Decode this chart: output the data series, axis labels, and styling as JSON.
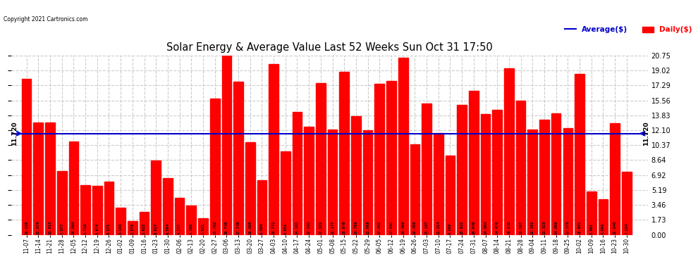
{
  "title": "Solar Energy & Average Value Last 52 Weeks Sun Oct 31 17:50",
  "copyright": "Copyright 2021 Cartronics.com",
  "average_label": "Average($)",
  "daily_label": "Daily($)",
  "average_value": 11.72,
  "categories": [
    "11-07",
    "11-14",
    "11-21",
    "11-28",
    "12-05",
    "12-12",
    "12-19",
    "12-26",
    "01-02",
    "01-09",
    "01-16",
    "01-23",
    "01-30",
    "02-06",
    "02-13",
    "02-20",
    "02-27",
    "03-06",
    "03-13",
    "03-20",
    "03-27",
    "04-03",
    "04-10",
    "04-17",
    "04-24",
    "05-01",
    "05-08",
    "05-15",
    "05-22",
    "05-29",
    "06-05",
    "06-12",
    "06-19",
    "06-26",
    "07-03",
    "07-10",
    "07-17",
    "07-24",
    "07-31",
    "08-07",
    "08-14",
    "08-21",
    "08-28",
    "09-04",
    "09-11",
    "09-18",
    "09-25",
    "10-02",
    "10-09",
    "10-16",
    "10-23",
    "10-30"
  ],
  "values": [
    18.039,
    12.978,
    13.013,
    7.377,
    10.804,
    5.716,
    5.674,
    6.171,
    3.143,
    1.579,
    2.622,
    8.617,
    6.594,
    4.277,
    3.38,
    1.921,
    15.792,
    20.745,
    17.74,
    10.695,
    6.304,
    19.772,
    9.651,
    14.181,
    12.543,
    17.521,
    12.177,
    18.846,
    13.766,
    12.088,
    17.452,
    17.841,
    20.468,
    10.459,
    15.187,
    11.814,
    9.169,
    15.022,
    16.646,
    14.004,
    14.47,
    19.235,
    15.507,
    12.191,
    13.323,
    14.069,
    12.376,
    18.601,
    5.001,
    4.096,
    12.94,
    7.334
  ],
  "bar_labels": [
    "18.039",
    "12.978",
    "13.013",
    "7.377",
    "10.804",
    "5.716",
    "5.674",
    "6.171",
    "3.143",
    "1.579",
    "2.622",
    "8.617",
    "6.594",
    "4.277",
    "3.380",
    "1.921",
    "15.792",
    "20.745",
    "17.740",
    "10.695",
    "6.304",
    "19.772",
    "9.651",
    "14.181",
    "12.543",
    "17.521",
    "12.177",
    "18.846",
    "13.766",
    "12.088",
    "17.452",
    "17.841",
    "20.468",
    "10.459",
    "15.187",
    "11.814",
    "9.169",
    "15.022",
    "16.646",
    "14.004",
    "14.470",
    "19.235",
    "15.507",
    "12.191",
    "13.323",
    "14.069",
    "12.376",
    "18.601",
    "5.001",
    "4.096",
    "12.940",
    "7.334"
  ],
  "bar_color": "#ff0000",
  "average_line_color": "#0000cc",
  "ytick_vals": [
    0.0,
    1.73,
    3.46,
    5.19,
    6.92,
    8.64,
    10.37,
    12.1,
    13.83,
    15.56,
    17.29,
    19.02,
    20.75
  ],
  "ytick_labels": [
    "0.00",
    "1.73",
    "3.46",
    "5.19",
    "6.92",
    "8.64",
    "10.37",
    "12.10",
    "13.83",
    "15.56",
    "17.29",
    "19.02",
    "20.75"
  ],
  "ylim": [
    0,
    20.75
  ],
  "background_color": "#ffffff",
  "grid_color": "#cccccc",
  "text_color_avg": "#0000cc",
  "text_color_daily": "#ff0000"
}
